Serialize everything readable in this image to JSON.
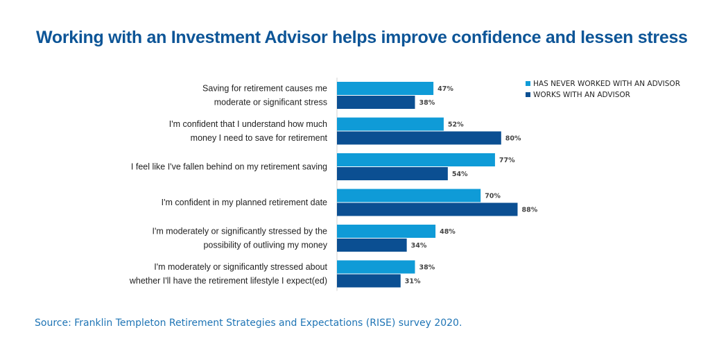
{
  "title": "Working with an Investment Advisor helps improve confidence and lessen stress",
  "source": "Source: Franklin Templeton Retirement Strategies and Expectations (RISE) survey 2020.",
  "colors": {
    "never": "#0f9bd7",
    "works": "#0b4f92",
    "title": "#0d5597"
  },
  "chart_data": {
    "type": "bar",
    "orientation": "horizontal",
    "categories": [
      [
        "Saving for retirement causes me",
        "moderate or significant stress"
      ],
      [
        "I'm confident that I understand how much",
        "money I need to save for retirement"
      ],
      [
        "I feel like I've fallen behind on my retirement saving"
      ],
      [
        "I'm confident in my planned retirement date"
      ],
      [
        "I'm moderately or significantly stressed by the",
        "possibility of outliving my money"
      ],
      [
        "I'm moderately or significantly stressed about",
        "whether I'll have the retirement lifestyle I expect(ed)"
      ]
    ],
    "series": [
      {
        "name": "HAS NEVER WORKED WITH AN ADVISOR",
        "values": [
          47,
          52,
          77,
          70,
          48,
          38
        ],
        "labels": [
          "47%",
          "52%",
          "77%",
          "70%",
          "48%",
          "38%"
        ]
      },
      {
        "name": "WORKS WITH AN ADVISOR",
        "values": [
          38,
          80,
          54,
          88,
          34,
          31
        ],
        "labels": [
          "38%",
          "80%",
          "54%",
          "88%",
          "34%",
          "31%"
        ]
      }
    ],
    "xlim": [
      0,
      100
    ],
    "grid": false,
    "legend_position": "top-right"
  }
}
